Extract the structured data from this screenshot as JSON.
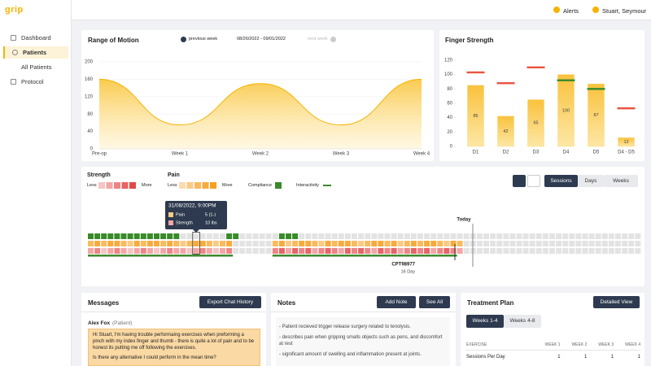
{
  "sidebar": {
    "logo": "grip",
    "nav": [
      "Dashboard",
      "Patients",
      "All Patients",
      "Protocol"
    ]
  },
  "topbar": {
    "alerts": "Alerts",
    "user": "Stuart, Seymour"
  },
  "rom_nav": {
    "previous": "previous week",
    "range": "08/26/2022 - 09/01/2022",
    "next": "next week"
  },
  "chart_data": [
    {
      "type": "area",
      "title": "Range of Motion",
      "categories": [
        "Pre-op",
        "Week 1",
        "Week 2",
        "Week 3",
        "Week 4"
      ],
      "values": [
        160,
        55,
        150,
        55,
        160
      ],
      "color": "#f5b400",
      "ylim": [
        0,
        200
      ],
      "yticks": [
        0,
        40,
        80,
        120,
        160,
        200
      ],
      "grid": true
    },
    {
      "type": "bar",
      "title": "Finger Strength",
      "categories": [
        "D1",
        "D2",
        "D3",
        "D4",
        "D5",
        "D4 - D5"
      ],
      "values": [
        85,
        42,
        65,
        100,
        87,
        12
      ],
      "color": "#f9c846",
      "targets": [
        103,
        88,
        110,
        92,
        80,
        53
      ],
      "target_color": "#e8543e",
      "target_met_color": "#3a8a2a",
      "ylim": [
        0,
        120
      ],
      "yticks": [
        0,
        20,
        40,
        60,
        80,
        100,
        120
      ],
      "grid": false
    }
  ],
  "activity": {
    "strength": {
      "title": "Strength",
      "less": "Less",
      "more": "More",
      "colors": [
        "#f6c4c4",
        "#f2a6a6",
        "#ee8585",
        "#e96464",
        "#e34848"
      ]
    },
    "pain": {
      "title": "Pain",
      "less": "Less",
      "more": "More",
      "colors": [
        "#fbdcae",
        "#f9cb85",
        "#f8bb5f",
        "#f6ab3e",
        "#f5a020"
      ]
    },
    "compliance": {
      "label": "Compliance",
      "color": "#3a8a2a"
    },
    "interactivity": {
      "label": "Interactivity",
      "color": "#3a8a2a"
    },
    "empty_color": "#e3e3e3",
    "views": [
      "Sessions",
      "Days",
      "Weeks"
    ],
    "today": "Today",
    "marker": {
      "code": "CPT98977",
      "days": "16 Day"
    },
    "tooltip": {
      "date": "31/08/2022, 9:00PM",
      "rows": [
        [
          "Pain",
          "5 (1-)"
        ],
        [
          "Strength",
          "10 lbs"
        ]
      ]
    },
    "rows": {
      "compliance": [
        1,
        1,
        1,
        1,
        1,
        1,
        1,
        1,
        1,
        1,
        1,
        1,
        1,
        1,
        0,
        0,
        0,
        0,
        0,
        0,
        0,
        1,
        1,
        0,
        0,
        0,
        0,
        0,
        0,
        1,
        1,
        1,
        0,
        0,
        0,
        0,
        0,
        0,
        0,
        0,
        0,
        0,
        0,
        0,
        0,
        0,
        0,
        0,
        0,
        0,
        0,
        0,
        0,
        0,
        0,
        0,
        0,
        0,
        0,
        0,
        0,
        0,
        0,
        0,
        0,
        0,
        0,
        0,
        0,
        0,
        0,
        0,
        0,
        0,
        0,
        0,
        0,
        0,
        0,
        0,
        0,
        0,
        0,
        0
      ],
      "pain": [
        3,
        4,
        3,
        4,
        4,
        3,
        2,
        4,
        3,
        4,
        4,
        3,
        4,
        3,
        2,
        3,
        4,
        4,
        3,
        2,
        3,
        4,
        0,
        0,
        0,
        0,
        0,
        0,
        3,
        4,
        2,
        3,
        4,
        4,
        3,
        2,
        4,
        3,
        4,
        4,
        3,
        2,
        3,
        4,
        4,
        3,
        4,
        2,
        3,
        4,
        3,
        4,
        4,
        3,
        2,
        4,
        3,
        0,
        0,
        0,
        0,
        0,
        0,
        0,
        0,
        0,
        0,
        0,
        0,
        0,
        0,
        0,
        0,
        0,
        0,
        0,
        0,
        0,
        0,
        0,
        0,
        0,
        0,
        0
      ],
      "strength": [
        2,
        3,
        1,
        2,
        3,
        2,
        1,
        2,
        3,
        2,
        1,
        2,
        3,
        2,
        2,
        1,
        2,
        3,
        2,
        1,
        2,
        3,
        0,
        0,
        0,
        0,
        0,
        0,
        3,
        4,
        2,
        4,
        3,
        4,
        2,
        3,
        4,
        3,
        2,
        4,
        3,
        4,
        3,
        2,
        4,
        3,
        4,
        2,
        3,
        4,
        3,
        4,
        2,
        3,
        4,
        3,
        2,
        0,
        0,
        0,
        0,
        0,
        0,
        0,
        0,
        0,
        0,
        0,
        0,
        0,
        0,
        0,
        0,
        0,
        0,
        0,
        0,
        0,
        0,
        0,
        0,
        0,
        0,
        0
      ],
      "interactivity": [
        1,
        1,
        1,
        1,
        1,
        1,
        1,
        1,
        1,
        1,
        1,
        1,
        1,
        1,
        1,
        1,
        1,
        1,
        1,
        1,
        1,
        1,
        0,
        0,
        0,
        0,
        0,
        0,
        1,
        1,
        1,
        1,
        1,
        1,
        1,
        1,
        1,
        1,
        1,
        1,
        1,
        1,
        1,
        1,
        1,
        1,
        1,
        1,
        1,
        1,
        1,
        1,
        1,
        1,
        1,
        1,
        0,
        0,
        0,
        0,
        0,
        0,
        0,
        0,
        0,
        0,
        0,
        0,
        0,
        0,
        0,
        0,
        0,
        0,
        0,
        0,
        0,
        0,
        0,
        0,
        0,
        0,
        0,
        0
      ]
    }
  },
  "messages": {
    "title": "Messages",
    "button": "Export Chat History",
    "sender": "Alex Fox",
    "role": "(Patient)",
    "text": [
      "Hi Stuart, I'm having trouble performaing exercises when preforming a pinch with my index finger and thumb - there is quite a lot of pain and to be honest its putting me off following the exercises.",
      "Is there any alternative I could perform in the mean time?"
    ]
  },
  "notes": {
    "title": "Notes",
    "add": "Add Note",
    "see_all": "See All",
    "items": [
      "- Patient recieved trigger release surgery related to tenolysis.",
      "- describes pain when gripping smalls objects such as pens, and discomfort at rest",
      "- significant amount of swelling and inflammation present  at joints."
    ]
  },
  "treatment": {
    "title": "Treatment Plan",
    "button": "Detailed View",
    "tabs": [
      "Weeks 1-4",
      "Weeks 4-8"
    ],
    "header": [
      "EXERCISE",
      "WEEK 1",
      "WEEK 2",
      "WEEK 3",
      "WEEK 4"
    ],
    "rows": [
      [
        "Sessions Per Day",
        "1",
        "1",
        "1",
        "1"
      ]
    ]
  }
}
